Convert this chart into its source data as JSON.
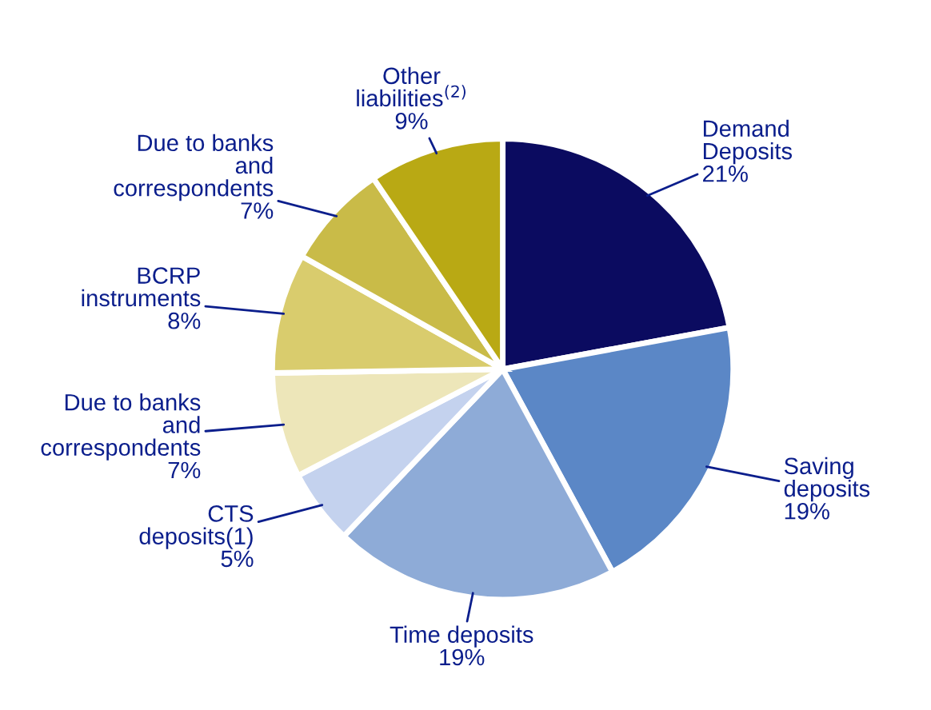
{
  "chart_data": {
    "type": "pie",
    "categories": [
      "Demand\nDeposits",
      "Saving\ndeposits",
      "Time deposits",
      "CTS\ndeposits(1)",
      "Due to banks\nand\ncorrespondents",
      "BCRP\ninstruments",
      "Due to banks\nand\ncorrespondents",
      "Other\nliabilities$^{(2)}$"
    ],
    "values": [
      21,
      19,
      19,
      5,
      7,
      8,
      7,
      9
    ],
    "value_labels": [
      "21%",
      "19%",
      "19%",
      "5%",
      "7%",
      "8%",
      "7%",
      "9%"
    ],
    "colors": [
      "#0b0b60",
      "#5b87c6",
      "#8eabd7",
      "#c4d2ee",
      "#ede6b9",
      "#d9cc6d",
      "#c9bb48",
      "#b9a914"
    ]
  }
}
